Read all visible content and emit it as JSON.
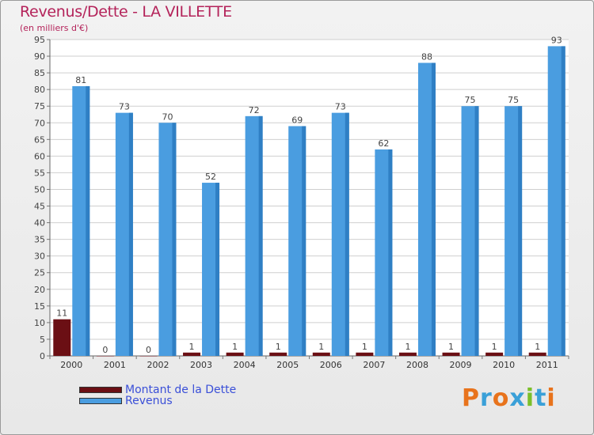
{
  "header": {
    "title": "Revenus/Dette - LA VILLETTE",
    "subtitle": "(en milliers d'€)"
  },
  "legend": {
    "debt_label": "Montant de la Dette",
    "revenue_label": "Revenus"
  },
  "brand": {
    "logo_text": "Proxiti"
  },
  "colors": {
    "debt": "#6b0f14",
    "revenue": "#4a9de0",
    "title": "#b4235a",
    "legend_text": "#3a4fd8"
  },
  "chart_data": {
    "type": "bar",
    "title": "Revenus/Dette - LA VILLETTE",
    "ylabel": "(en milliers d'€)",
    "xlabel": "",
    "ylim": [
      0,
      95
    ],
    "ytick_step": 5,
    "grid": true,
    "legend_position": "bottom-left",
    "categories": [
      "2000",
      "2001",
      "2002",
      "2003",
      "2004",
      "2005",
      "2006",
      "2007",
      "2008",
      "2009",
      "2010",
      "2011"
    ],
    "series": [
      {
        "name": "Montant de la Dette",
        "values": [
          11,
          0,
          0,
          1,
          1,
          1,
          1,
          1,
          1,
          1,
          1,
          1
        ]
      },
      {
        "name": "Revenus",
        "values": [
          81,
          73,
          70,
          52,
          72,
          69,
          73,
          62,
          88,
          75,
          75,
          93
        ]
      }
    ]
  }
}
